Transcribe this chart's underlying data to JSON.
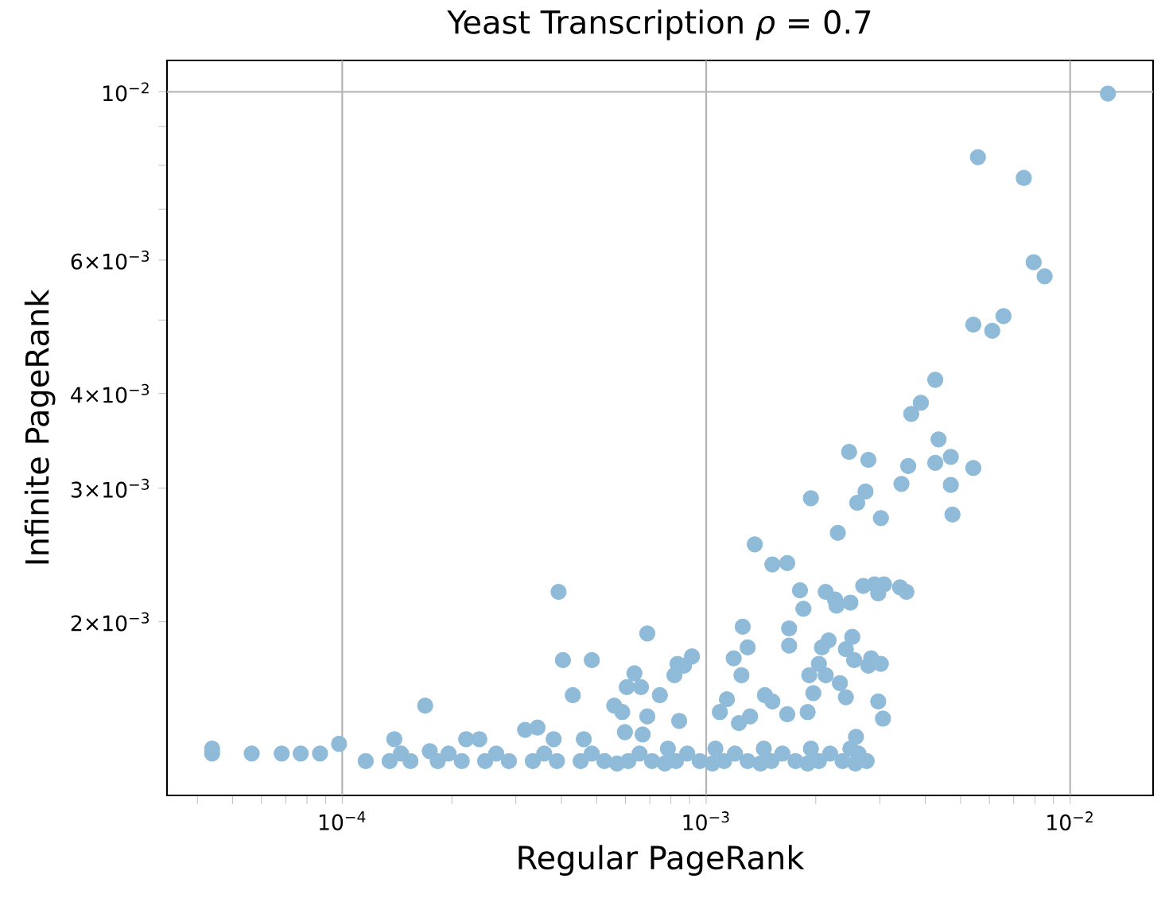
{
  "chart_data": {
    "type": "scatter",
    "title": "Yeast Transcription     *ρ* = 0.7",
    "xlabel": "Regular PageRank",
    "ylabel": "Infinite PageRank",
    "log": "xy",
    "grid": true,
    "xlim": [
      3.3e-05,
      0.0169
    ],
    "ylim": [
      0.00118,
      0.011
    ],
    "xticks": [
      {
        "value": 4e-05,
        "label": null
      },
      {
        "value": 5e-05,
        "label": null
      },
      {
        "value": 6e-05,
        "label": null
      },
      {
        "value": 7e-05,
        "label": null
      },
      {
        "value": 8e-05,
        "label": null
      },
      {
        "value": 9e-05,
        "label": null
      },
      {
        "value": 0.0001,
        "label": "10$^{−4}$"
      },
      {
        "value": 0.0002,
        "label": null
      },
      {
        "value": 0.0003,
        "label": null
      },
      {
        "value": 0.0004,
        "label": null
      },
      {
        "value": 0.0005,
        "label": null
      },
      {
        "value": 0.0006,
        "label": null
      },
      {
        "value": 0.0007,
        "label": null
      },
      {
        "value": 0.0008,
        "label": null
      },
      {
        "value": 0.0009,
        "label": null
      },
      {
        "value": 0.001,
        "label": "10$^{−3}$"
      },
      {
        "value": 0.002,
        "label": null
      },
      {
        "value": 0.003,
        "label": null
      },
      {
        "value": 0.004,
        "label": null
      },
      {
        "value": 0.005,
        "label": null
      },
      {
        "value": 0.006,
        "label": null
      },
      {
        "value": 0.007,
        "label": null
      },
      {
        "value": 0.008,
        "label": null
      },
      {
        "value": 0.009,
        "label": null
      },
      {
        "value": 0.01,
        "label": "10$^{−2}$"
      }
    ],
    "yticks": [
      {
        "value": 0.002,
        "label": "2×10$^{−3}$"
      },
      {
        "value": 0.003,
        "label": "3×10$^{−3}$"
      },
      {
        "value": 0.004,
        "label": "4×10$^{−3}$"
      },
      {
        "value": 0.005,
        "label": null
      },
      {
        "value": 0.006,
        "label": "6×10$^{−3}$"
      },
      {
        "value": 0.007,
        "label": null
      },
      {
        "value": 0.008,
        "label": null
      },
      {
        "value": 0.009,
        "label": null
      },
      {
        "value": 0.01,
        "label": "10$^{−2}$"
      }
    ],
    "series": [
      {
        "color": "#8fbbd9",
        "x": [
          0.0127,
          0.00558,
          0.00746,
          0.00794,
          0.00851,
          0.00542,
          0.00611,
          0.00656,
          0.00426,
          0.00389,
          0.00366,
          0.00435,
          0.00247,
          0.00279,
          0.00359,
          0.00426,
          0.0047,
          0.00542,
          0.00344,
          0.0047,
          0.00194,
          0.00274,
          0.0026,
          0.00302,
          0.00475,
          0.0023,
          0.00136,
          0.00152,
          0.00167,
          0.00181,
          0.00185,
          0.00213,
          0.00226,
          0.00228,
          0.00249,
          0.0027,
          0.0029,
          0.00308,
          0.00297,
          0.00341,
          0.00355,
          0.00126,
          0.0013,
          0.00119,
          0.00125,
          0.00169,
          0.00169,
          0.00217,
          0.00208,
          0.00252,
          0.00242,
          0.00255,
          0.00204,
          0.00192,
          0.00213,
          0.00197,
          0.00284,
          0.00302,
          0.00279,
          0.00233,
          0.00242,
          0.00297,
          0.00306,
          0.00114,
          0.00145,
          0.00152,
          0.00167,
          0.00109,
          0.00132,
          0.00123,
          0.0019,
          0.00258,
          0.000746,
          0.000834,
          0.000869,
          0.000914,
          0.000818,
          0.000843,
          0.000393,
          0.000404,
          0.000485,
          0.00043,
          0.000689,
          0.000635,
          0.000605,
          0.000662,
          0.000559,
          0.000588,
          0.000689,
          0.000169,
          0.000318,
          0.000344,
          0.000139,
          0.000219,
          0.000238,
          9.8e-05,
          4.39e-05,
          4.39e-05,
          5.64e-05,
          6.82e-05,
          7.69e-05,
          8.69e-05,
          0.000381,
          0.000461,
          0.000598,
          0.000669,
          0.000174,
          0.000116,
          0.000135,
          0.000154,
          0.000183,
          0.000213,
          0.000247,
          0.000287,
          0.000334,
          0.000389,
          0.000452,
          0.000525,
          0.000611,
          0.00071,
          0.000826,
          0.00096,
          0.00112,
          0.0013,
          0.00151,
          0.00176,
          0.00204,
          0.00237,
          0.00276,
          0.000145,
          0.000196,
          0.000265,
          0.000359,
          0.000485,
          0.000656,
          0.000887,
          0.0012,
          0.00162,
          0.00219,
          0.00262,
          0.000785,
          0.00106,
          0.00144,
          0.00194,
          0.00249,
          0.000569,
          0.00077,
          0.00104,
          0.00141,
          0.0019,
          0.00257
        ],
        "values": [
          0.00995,
          0.0082,
          0.0077,
          0.00596,
          0.00571,
          0.00493,
          0.00484,
          0.00506,
          0.00417,
          0.00389,
          0.00376,
          0.00348,
          0.00335,
          0.00327,
          0.00321,
          0.00324,
          0.0033,
          0.00319,
          0.00304,
          0.00303,
          0.00291,
          0.00297,
          0.00287,
          0.00274,
          0.00277,
          0.00262,
          0.00253,
          0.00238,
          0.00239,
          0.0022,
          0.00208,
          0.00219,
          0.00214,
          0.0021,
          0.00212,
          0.00223,
          0.00224,
          0.00224,
          0.00218,
          0.00222,
          0.00219,
          0.00197,
          0.00185,
          0.00179,
          0.0017,
          0.00196,
          0.00186,
          0.00189,
          0.00185,
          0.00191,
          0.00184,
          0.00178,
          0.00176,
          0.0017,
          0.0017,
          0.00161,
          0.00179,
          0.00176,
          0.00175,
          0.00166,
          0.00159,
          0.00157,
          0.00149,
          0.00158,
          0.0016,
          0.00157,
          0.00151,
          0.00152,
          0.0015,
          0.00147,
          0.00152,
          0.00141,
          0.0016,
          0.00176,
          0.00175,
          0.0018,
          0.0017,
          0.00148,
          0.00219,
          0.00178,
          0.00178,
          0.0016,
          0.00193,
          0.00171,
          0.00164,
          0.00164,
          0.00155,
          0.00152,
          0.0015,
          0.00155,
          0.00144,
          0.00145,
          0.0014,
          0.0014,
          0.0014,
          0.00138,
          0.00136,
          0.00134,
          0.00134,
          0.00134,
          0.00134,
          0.00134,
          0.0014,
          0.0014,
          0.00143,
          0.00142,
          0.00135,
          0.00131,
          0.00131,
          0.00131,
          0.00131,
          0.00131,
          0.00131,
          0.00131,
          0.00131,
          0.00131,
          0.00131,
          0.00131,
          0.00131,
          0.00131,
          0.00131,
          0.00131,
          0.00131,
          0.00131,
          0.00131,
          0.00131,
          0.00131,
          0.00131,
          0.00131,
          0.00134,
          0.00134,
          0.00134,
          0.00134,
          0.00134,
          0.00134,
          0.00134,
          0.00134,
          0.00134,
          0.00134,
          0.00134,
          0.00136,
          0.00136,
          0.00136,
          0.00136,
          0.00136,
          0.0013,
          0.0013,
          0.0013,
          0.0013,
          0.0013,
          0.0013
        ]
      }
    ]
  }
}
